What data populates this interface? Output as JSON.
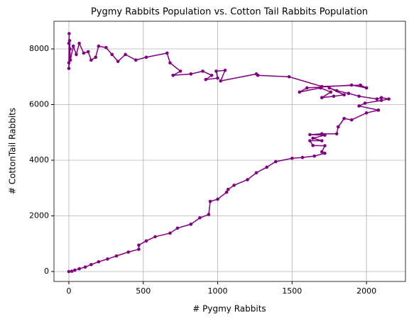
{
  "chart_data": {
    "type": "line",
    "title": "Pygmy Rabbits Population vs. Cotton Tail Rabbits Population",
    "x_label": "# Pygmy Rabbits",
    "y_label": "# CottonTail Rabbits",
    "xlim": [
      -100,
      2262
    ],
    "ylim": [
      -357,
      8994
    ],
    "xticks": [
      0,
      500,
      1000,
      1500,
      2000
    ],
    "yticks": [
      0,
      2000,
      4000,
      6000,
      8000
    ],
    "grid": true,
    "series": [
      {
        "color": "#800080",
        "x": [
          0,
          20,
          40,
          70,
          110,
          150,
          200,
          260,
          320,
          400,
          470,
          470,
          520,
          580,
          680,
          730,
          820,
          880,
          940,
          950,
          1000,
          1060,
          1070,
          1110,
          1200,
          1260,
          1330,
          1390,
          1500,
          1570,
          1650,
          1720,
          1700,
          1720,
          1640,
          1620,
          1700,
          1640,
          1720,
          1620,
          1700,
          1800,
          1810,
          1850,
          1900,
          2000,
          2080,
          1950,
          1990,
          2100,
          2150,
          2100,
          2070,
          1950,
          1880,
          1800,
          1750,
          1850,
          1780,
          1700,
          1760,
          1690,
          1550,
          1600,
          1900,
          2000,
          1960,
          1700,
          1480,
          1270,
          1260,
          1020,
          1050,
          990,
          1000,
          920,
          960,
          900,
          820,
          700,
          750,
          680,
          660,
          520,
          450,
          380,
          330,
          290,
          250,
          200,
          180,
          150,
          130,
          100,
          70,
          50,
          30,
          10,
          5,
          0,
          2,
          0,
          8,
          0
        ],
        "values": [
          0,
          10,
          50,
          100,
          160,
          250,
          350,
          450,
          560,
          700,
          800,
          950,
          1100,
          1250,
          1380,
          1560,
          1700,
          1930,
          2050,
          2520,
          2600,
          2850,
          2950,
          3100,
          3300,
          3550,
          3750,
          3950,
          4070,
          4100,
          4150,
          4250,
          4300,
          4520,
          4530,
          4700,
          4700,
          4790,
          4900,
          4920,
          4950,
          4950,
          5200,
          5500,
          5450,
          5700,
          5800,
          5950,
          6050,
          6150,
          6200,
          6250,
          6200,
          6300,
          6400,
          6500,
          6600,
          6350,
          6300,
          6250,
          6450,
          6600,
          6450,
          6600,
          6700,
          6600,
          6700,
          6650,
          7000,
          7050,
          7100,
          6850,
          7230,
          7200,
          6950,
          6900,
          7050,
          7200,
          7100,
          7050,
          7200,
          7500,
          7850,
          7700,
          7600,
          7800,
          7550,
          7800,
          8050,
          8100,
          7700,
          7600,
          7900,
          7850,
          8200,
          7800,
          8100,
          7600,
          8300,
          7500,
          8550,
          7300,
          8000,
          8200
        ]
      }
    ]
  }
}
